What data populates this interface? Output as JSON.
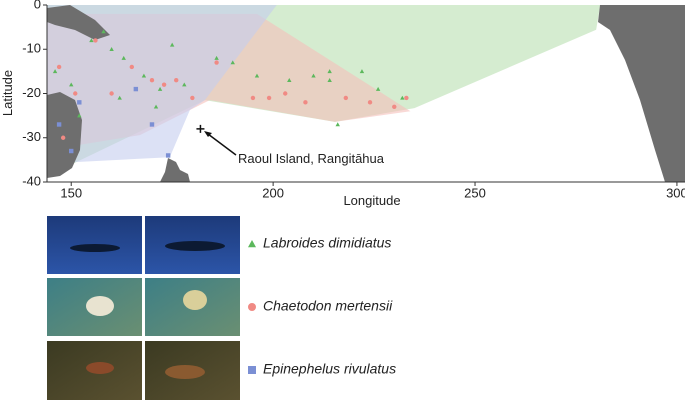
{
  "chart_data": {
    "type": "scatter",
    "xlabel": "Longitude",
    "ylabel": "Latitude",
    "xlim": [
      144,
      302
    ],
    "ylim": [
      -40,
      0
    ],
    "xticks": [
      150,
      200,
      250,
      300
    ],
    "yticks": [
      0,
      -10,
      -20,
      -30,
      -40
    ],
    "annotation": {
      "text": "Raoul Island, Rangitāhua",
      "x": 182,
      "y": -28
    },
    "series": [
      {
        "name": "Labroides dimidiatus",
        "marker": "triangle",
        "color": "#5cb85c",
        "hull_color": "#b9e0b0",
        "x": [
          146,
          150,
          155,
          160,
          163,
          168,
          172,
          178,
          186,
          190,
          196,
          204,
          210,
          214,
          216,
          222,
          226,
          232,
          175,
          158,
          152,
          162,
          171,
          214
        ],
        "y": [
          -15,
          -18,
          -8,
          -10,
          -12,
          -16,
          -19,
          -18,
          -12,
          -13,
          -16,
          -17,
          -16,
          -17,
          -27,
          -15,
          -19,
          -21,
          -9,
          -6,
          -25,
          -21,
          -23,
          -15
        ],
        "hull_x": [
          144,
          281,
          280,
          235,
          215.3,
          183.1,
          149.7,
          144
        ],
        "hull_y": [
          0,
          0,
          -5.6,
          -23.3,
          -26.4,
          -21.5,
          -36.2,
          -30.5
        ]
      },
      {
        "name": "Chaetodon mertensii",
        "marker": "circle",
        "color": "#f08a84",
        "hull_color": "#f5c0ba",
        "x": [
          147,
          151,
          156,
          165,
          170,
          173,
          176,
          180,
          186,
          195,
          203,
          208,
          218,
          224,
          230,
          233,
          160,
          148,
          199
        ],
        "y": [
          -14,
          -20,
          -8,
          -14,
          -17,
          -18,
          -17,
          -21,
          -13,
          -21,
          -20,
          -22,
          -21,
          -22,
          -23,
          -21,
          -20,
          -30,
          -21
        ],
        "hull_x": [
          144,
          196,
          234,
          215.3,
          184.3,
          167,
          144
        ],
        "hull_y": [
          -2,
          -2,
          -24,
          -26.4,
          -21.5,
          -29.4,
          -32.8
        ]
      },
      {
        "name": "Epinephelus rivulatus",
        "marker": "square",
        "color": "#7b8fd4",
        "hull_color": "#c4cdef",
        "x": [
          147,
          150,
          170,
          174,
          166,
          152
        ],
        "y": [
          -27,
          -33,
          -27,
          -34,
          -19,
          -22
        ],
        "hull_x": [
          144,
          200.9,
          183.1,
          179.4,
          174.4,
          150.9,
          144
        ],
        "hull_y": [
          0,
          0,
          -21.5,
          -23.7,
          -34.4,
          -35.5,
          -32.8
        ]
      }
    ]
  }
}
